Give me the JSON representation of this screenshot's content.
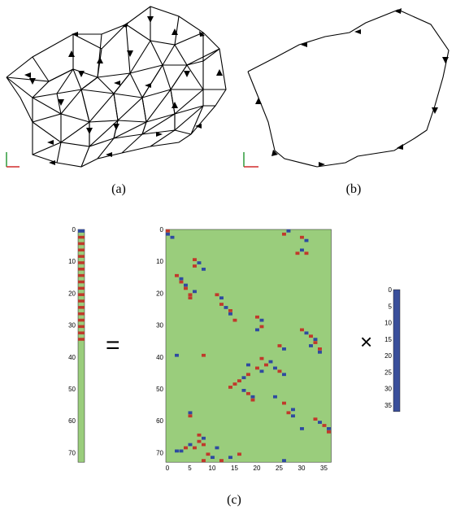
{
  "panels": {
    "a": {
      "caption": "(a)"
    },
    "b": {
      "caption": "(b)"
    },
    "c": {
      "caption": "(c)"
    }
  },
  "equation": {
    "equals": "=",
    "times": "×"
  },
  "colors": {
    "background_green": "#9acd7c",
    "positive_red": "#c0392b",
    "negative_blue": "#2e4aa0",
    "vector_blue": "#3a4f9b"
  },
  "left_vector": {
    "ticks": [
      0,
      10,
      20,
      30,
      40,
      50,
      60,
      70
    ]
  },
  "matrix": {
    "yticks": [
      0,
      10,
      20,
      30,
      40,
      50,
      60,
      70
    ],
    "xticks": [
      0,
      5,
      10,
      15,
      20,
      25,
      30,
      35
    ]
  },
  "right_vector": {
    "ticks": [
      0,
      5,
      10,
      15,
      20,
      25,
      30,
      35
    ]
  },
  "legend_icons": [
    "axis-icon-a",
    "axis-icon-b"
  ]
}
